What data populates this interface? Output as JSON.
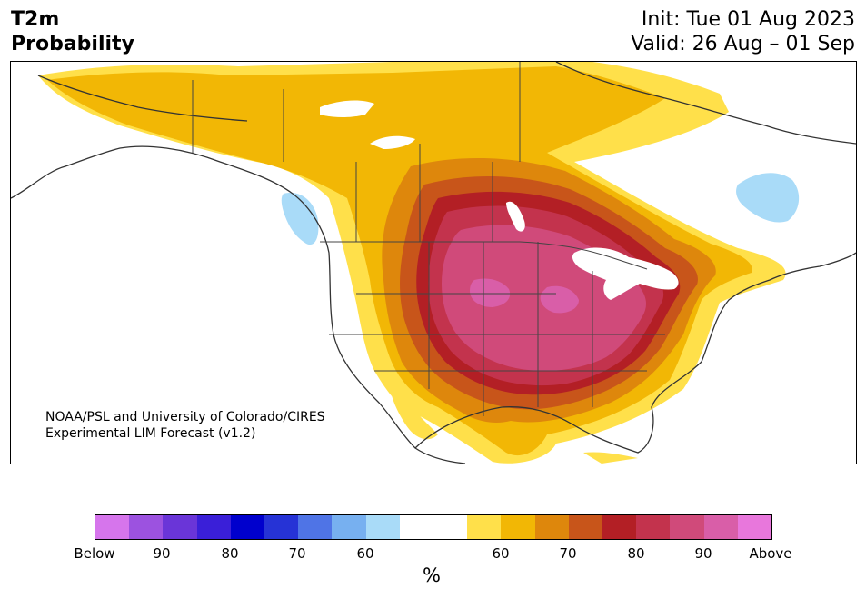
{
  "header": {
    "title_line1": "T2m",
    "title_line2": "Probability",
    "init_text": "Init: Tue 01 Aug 2023",
    "valid_text": "Valid: 26 Aug – 01 Sep"
  },
  "map": {
    "credit_line1": "NOAA/PSL and University of Colorado/CIRES",
    "credit_line2": "Experimental LIM Forecast (v1.2)"
  },
  "colorbar": {
    "colors": [
      "#d675ec",
      "#9c52e0",
      "#6a35d8",
      "#3a1fd8",
      "#0000cd",
      "#2633d6",
      "#4f74e6",
      "#77b0f0",
      "#a9dbf8",
      "#ffffff",
      "#ffffff",
      "#ffe04a",
      "#f2b705",
      "#de870c",
      "#c8551a",
      "#b31f25",
      "#c3334d",
      "#d04a7a",
      "#d95ea8",
      "#e877dc"
    ],
    "tick_labels": [
      "Below",
      "90",
      "80",
      "70",
      "60",
      "60",
      "70",
      "80",
      "90",
      "Above"
    ],
    "unit": "%"
  }
}
